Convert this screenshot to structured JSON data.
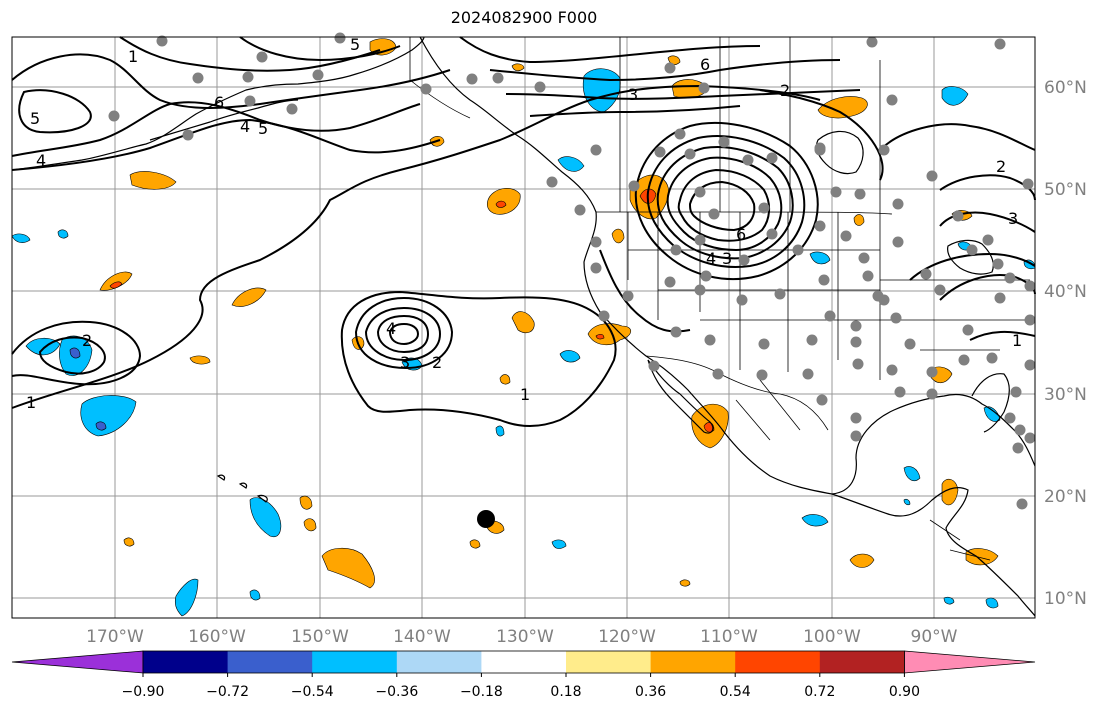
{
  "title": "2024082900 F000",
  "lon_labels": [
    "170°W",
    "160°W",
    "150°W",
    "140°W",
    "130°W",
    "120°W",
    "110°W",
    "100°W",
    "90°W"
  ],
  "lat_labels": [
    "60°N",
    "50°N",
    "40°N",
    "30°N",
    "20°N",
    "10°N"
  ],
  "contour_labels": [
    "1",
    "2",
    "3",
    "4",
    "5",
    "6"
  ],
  "colorbar": {
    "tick_labels": [
      "−0.90",
      "−0.72",
      "−0.54",
      "−0.36",
      "−0.18",
      "0.18",
      "0.36",
      "0.54",
      "0.72",
      "0.90"
    ],
    "colors": [
      "#9b30d9",
      "#00008b",
      "#3a5fcd",
      "#00bfff",
      "#add8f6",
      "#ffffff",
      "#ffec8b",
      "#ffa500",
      "#ff4500",
      "#b22222",
      "#ff8cb4"
    ]
  },
  "fill_colors": {
    "orange": "#ffa500",
    "red": "#ff4500",
    "cyan": "#00bfff",
    "blue": "#3a5fcd",
    "marker": "#808080",
    "storm": "#000000"
  }
}
